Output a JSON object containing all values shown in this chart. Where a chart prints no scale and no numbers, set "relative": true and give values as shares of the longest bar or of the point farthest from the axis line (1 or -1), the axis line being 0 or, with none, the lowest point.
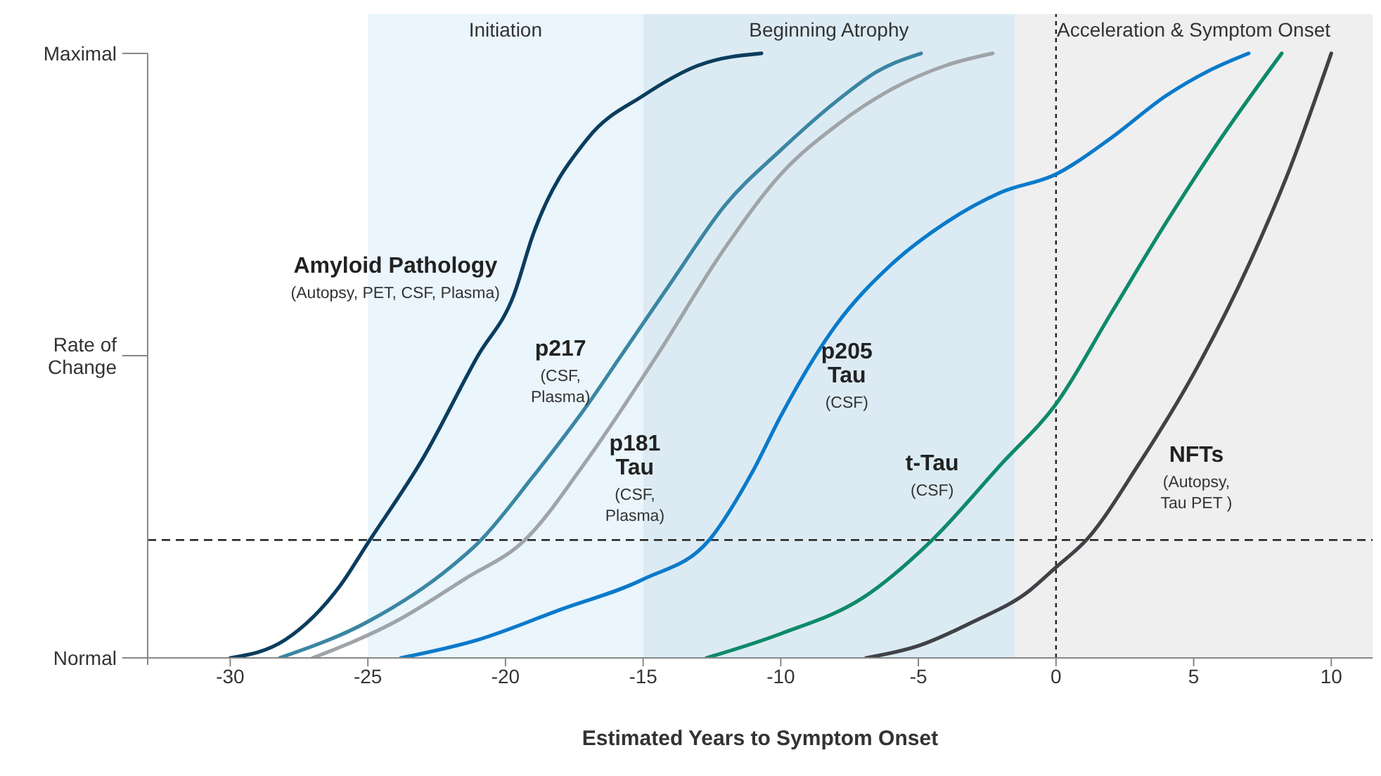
{
  "chart_data": {
    "type": "line",
    "xlabel": "Estimated Years to Symptom Onset",
    "relative": true,
    "xlim": [
      -33,
      11.5
    ],
    "xticks": [
      -30,
      -25,
      -20,
      -15,
      -10,
      -5,
      0,
      5,
      10
    ],
    "marker": "none",
    "line_style": "solid",
    "series": [
      {
        "name": "Amyloid Pathology",
        "color": "#0b3d5e",
        "x": [
          -30,
          -28,
          -26,
          -25,
          -23,
          -21,
          -19.7,
          -19,
          -17,
          -15,
          -13,
          -10.7
        ],
        "values": [
          0,
          0.03,
          0.12,
          0.19,
          0.33,
          0.5,
          0.6,
          0.7,
          0.86,
          0.93,
          0.98,
          1.0
        ]
      },
      {
        "name": "p217",
        "color": "#3a86a3",
        "x": [
          -28.2,
          -25,
          -22,
          -21,
          -19,
          -17,
          -15.8,
          -14,
          -12,
          -10,
          -8,
          -6.5,
          -4.9
        ],
        "values": [
          0,
          0.06,
          0.15,
          0.19,
          0.3,
          0.42,
          0.5,
          0.62,
          0.75,
          0.84,
          0.92,
          0.97,
          1.0
        ]
      },
      {
        "name": "p181\nTau",
        "color": "#a0a4a8",
        "x": [
          -27,
          -24,
          -21.5,
          -19.3,
          -17,
          -14.5,
          -12,
          -10,
          -8,
          -6,
          -4,
          -2.3
        ],
        "values": [
          0,
          0.06,
          0.13,
          0.195,
          0.33,
          0.5,
          0.68,
          0.8,
          0.88,
          0.94,
          0.98,
          1.0
        ]
      },
      {
        "name": "p205\nTau",
        "color": "#0a7acb",
        "x": [
          -23.8,
          -21,
          -18,
          -15,
          -12.6,
          -11,
          -10,
          -8,
          -6,
          -4,
          -2,
          0,
          2,
          4,
          5.5,
          7
        ],
        "values": [
          0,
          0.03,
          0.08,
          0.13,
          0.195,
          0.31,
          0.4,
          0.55,
          0.65,
          0.72,
          0.77,
          0.8,
          0.86,
          0.93,
          0.97,
          1.0
        ]
      },
      {
        "name": "t-Tau",
        "color": "#0e8a6a",
        "x": [
          -12.7,
          -10,
          -7,
          -4.5,
          -2,
          0,
          2,
          4,
          6,
          8.2
        ],
        "values": [
          0,
          0.04,
          0.1,
          0.195,
          0.32,
          0.42,
          0.57,
          0.72,
          0.86,
          1.0
        ]
      },
      {
        "name": "NFTs",
        "color": "#3f4246",
        "x": [
          -6.9,
          -5,
          -3,
          -1,
          0,
          1.1,
          3,
          5,
          7,
          8.5,
          10
        ],
        "values": [
          0,
          0.02,
          0.06,
          0.11,
          0.15,
          0.195,
          0.32,
          0.47,
          0.65,
          0.81,
          1.0
        ]
      }
    ],
    "annotations": [
      "(Autopsy, PET, CSF, Plasma)",
      "(CSF,\nPlasma)",
      "(CSF,\nPlasma)",
      "(CSF)",
      "(CSF)",
      "(Autopsy,\nTau PET )",
      "Maximal",
      "Rate of\nChange",
      "Normal"
    ],
    "bands": [
      {
        "axis": "x",
        "from": -25,
        "to": -15,
        "label": "Initiation",
        "color": "#eaf5fc"
      },
      {
        "axis": "x",
        "from": -15,
        "to": -1.5,
        "label": "Beginning Atrophy",
        "color": "#dcebf3"
      },
      {
        "axis": "x",
        "from": -1.5,
        "to": 11.5,
        "label": "Acceleration & Symptom Onset",
        "color": "#efefef"
      }
    ],
    "ref_lines": [
      {
        "axis": "y",
        "value": 0.195,
        "color": "#222222",
        "line_style": "dashed"
      },
      {
        "axis": "x",
        "value": 0,
        "color": "#222222",
        "line_style": "dotted"
      }
    ]
  }
}
